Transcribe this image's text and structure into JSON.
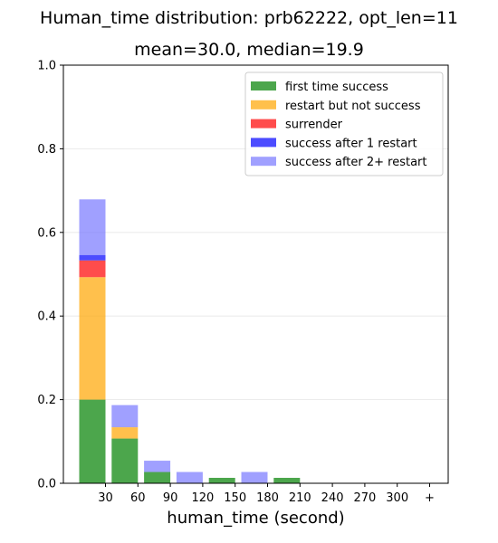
{
  "chart_data": {
    "type": "bar",
    "stacked": true,
    "title": "Human_time distribution: prb62222, opt_len=11",
    "subtitle": "mean=30.0, median=19.9",
    "xlabel": "human_time (second)",
    "ylabel": "",
    "ylim": [
      0,
      1.0
    ],
    "yticks": [
      "0.0",
      "0.2",
      "0.4",
      "0.6",
      "0.8",
      "1.0"
    ],
    "categories": [
      "30",
      "60",
      "90",
      "120",
      "150",
      "180",
      "210",
      "240",
      "270",
      "300",
      "+"
    ],
    "grid": "horizontal",
    "legend_position": "top-right",
    "series": [
      {
        "name": "first time success",
        "color": "#008000",
        "values": [
          0.2,
          0.107,
          0.027,
          0,
          0.013,
          0,
          0.013,
          0,
          0,
          0,
          0
        ]
      },
      {
        "name": "restart but not success",
        "color": "#ffa500",
        "values": [
          0.293,
          0.027,
          0,
          0,
          0,
          0,
          0,
          0,
          0,
          0,
          0
        ]
      },
      {
        "name": "surrender",
        "color": "#ff0000",
        "values": [
          0.04,
          0,
          0,
          0,
          0,
          0,
          0,
          0,
          0,
          0,
          0
        ]
      },
      {
        "name": "success after 1 restart",
        "color": "#0000ff",
        "values": [
          0.013,
          0,
          0,
          0,
          0,
          0,
          0,
          0,
          0,
          0,
          0
        ]
      },
      {
        "name": "success after 2+ restart",
        "color": "#7777ff",
        "values": [
          0.133,
          0.053,
          0.027,
          0.027,
          0,
          0.027,
          0,
          0,
          0,
          0,
          0
        ]
      }
    ]
  }
}
